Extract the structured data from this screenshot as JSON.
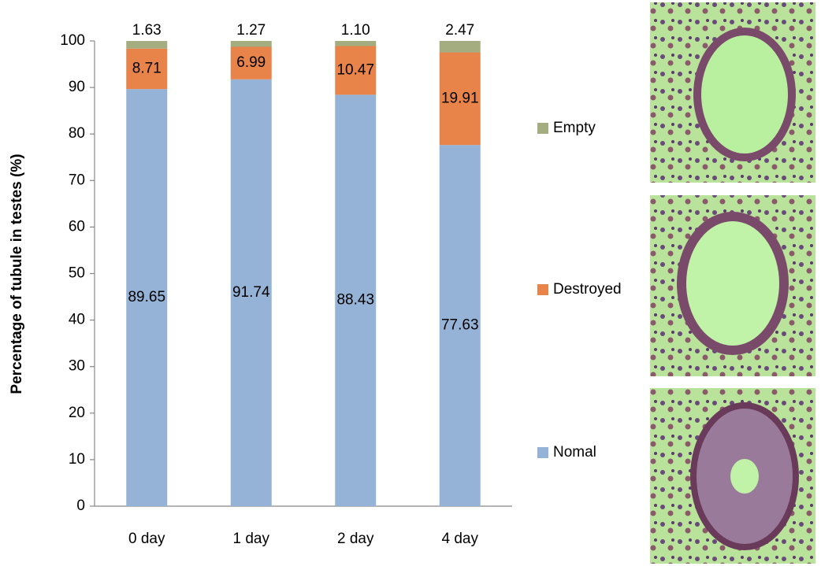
{
  "chart_data": {
    "type": "stacked_bar",
    "y_label": "Percentage of tubule in testes (%)",
    "categories": [
      "0 day",
      "1 day",
      "2 day",
      "4 day"
    ],
    "series": [
      {
        "name": "Nomal",
        "color": "#95b3d7",
        "values": [
          89.65,
          91.74,
          88.43,
          77.63
        ],
        "value_labels": [
          "89.65",
          "91.74",
          "88.43",
          "77.63"
        ]
      },
      {
        "name": "Destroyed",
        "color": "#e8834a",
        "values": [
          8.71,
          6.99,
          10.47,
          19.91
        ],
        "value_labels": [
          "8.71",
          "6.99",
          "10.47",
          "19.91"
        ]
      },
      {
        "name": "Empty",
        "color": "#a3ad7f",
        "values": [
          1.63,
          1.27,
          1.1,
          2.47
        ],
        "value_labels": [
          "1.63",
          "1.27",
          "1.10",
          "2.47"
        ]
      }
    ],
    "ylim": [
      0,
      100
    ],
    "yticks": [
      0,
      10,
      20,
      30,
      40,
      50,
      60,
      70,
      80,
      90,
      100
    ],
    "grid": false
  }
}
